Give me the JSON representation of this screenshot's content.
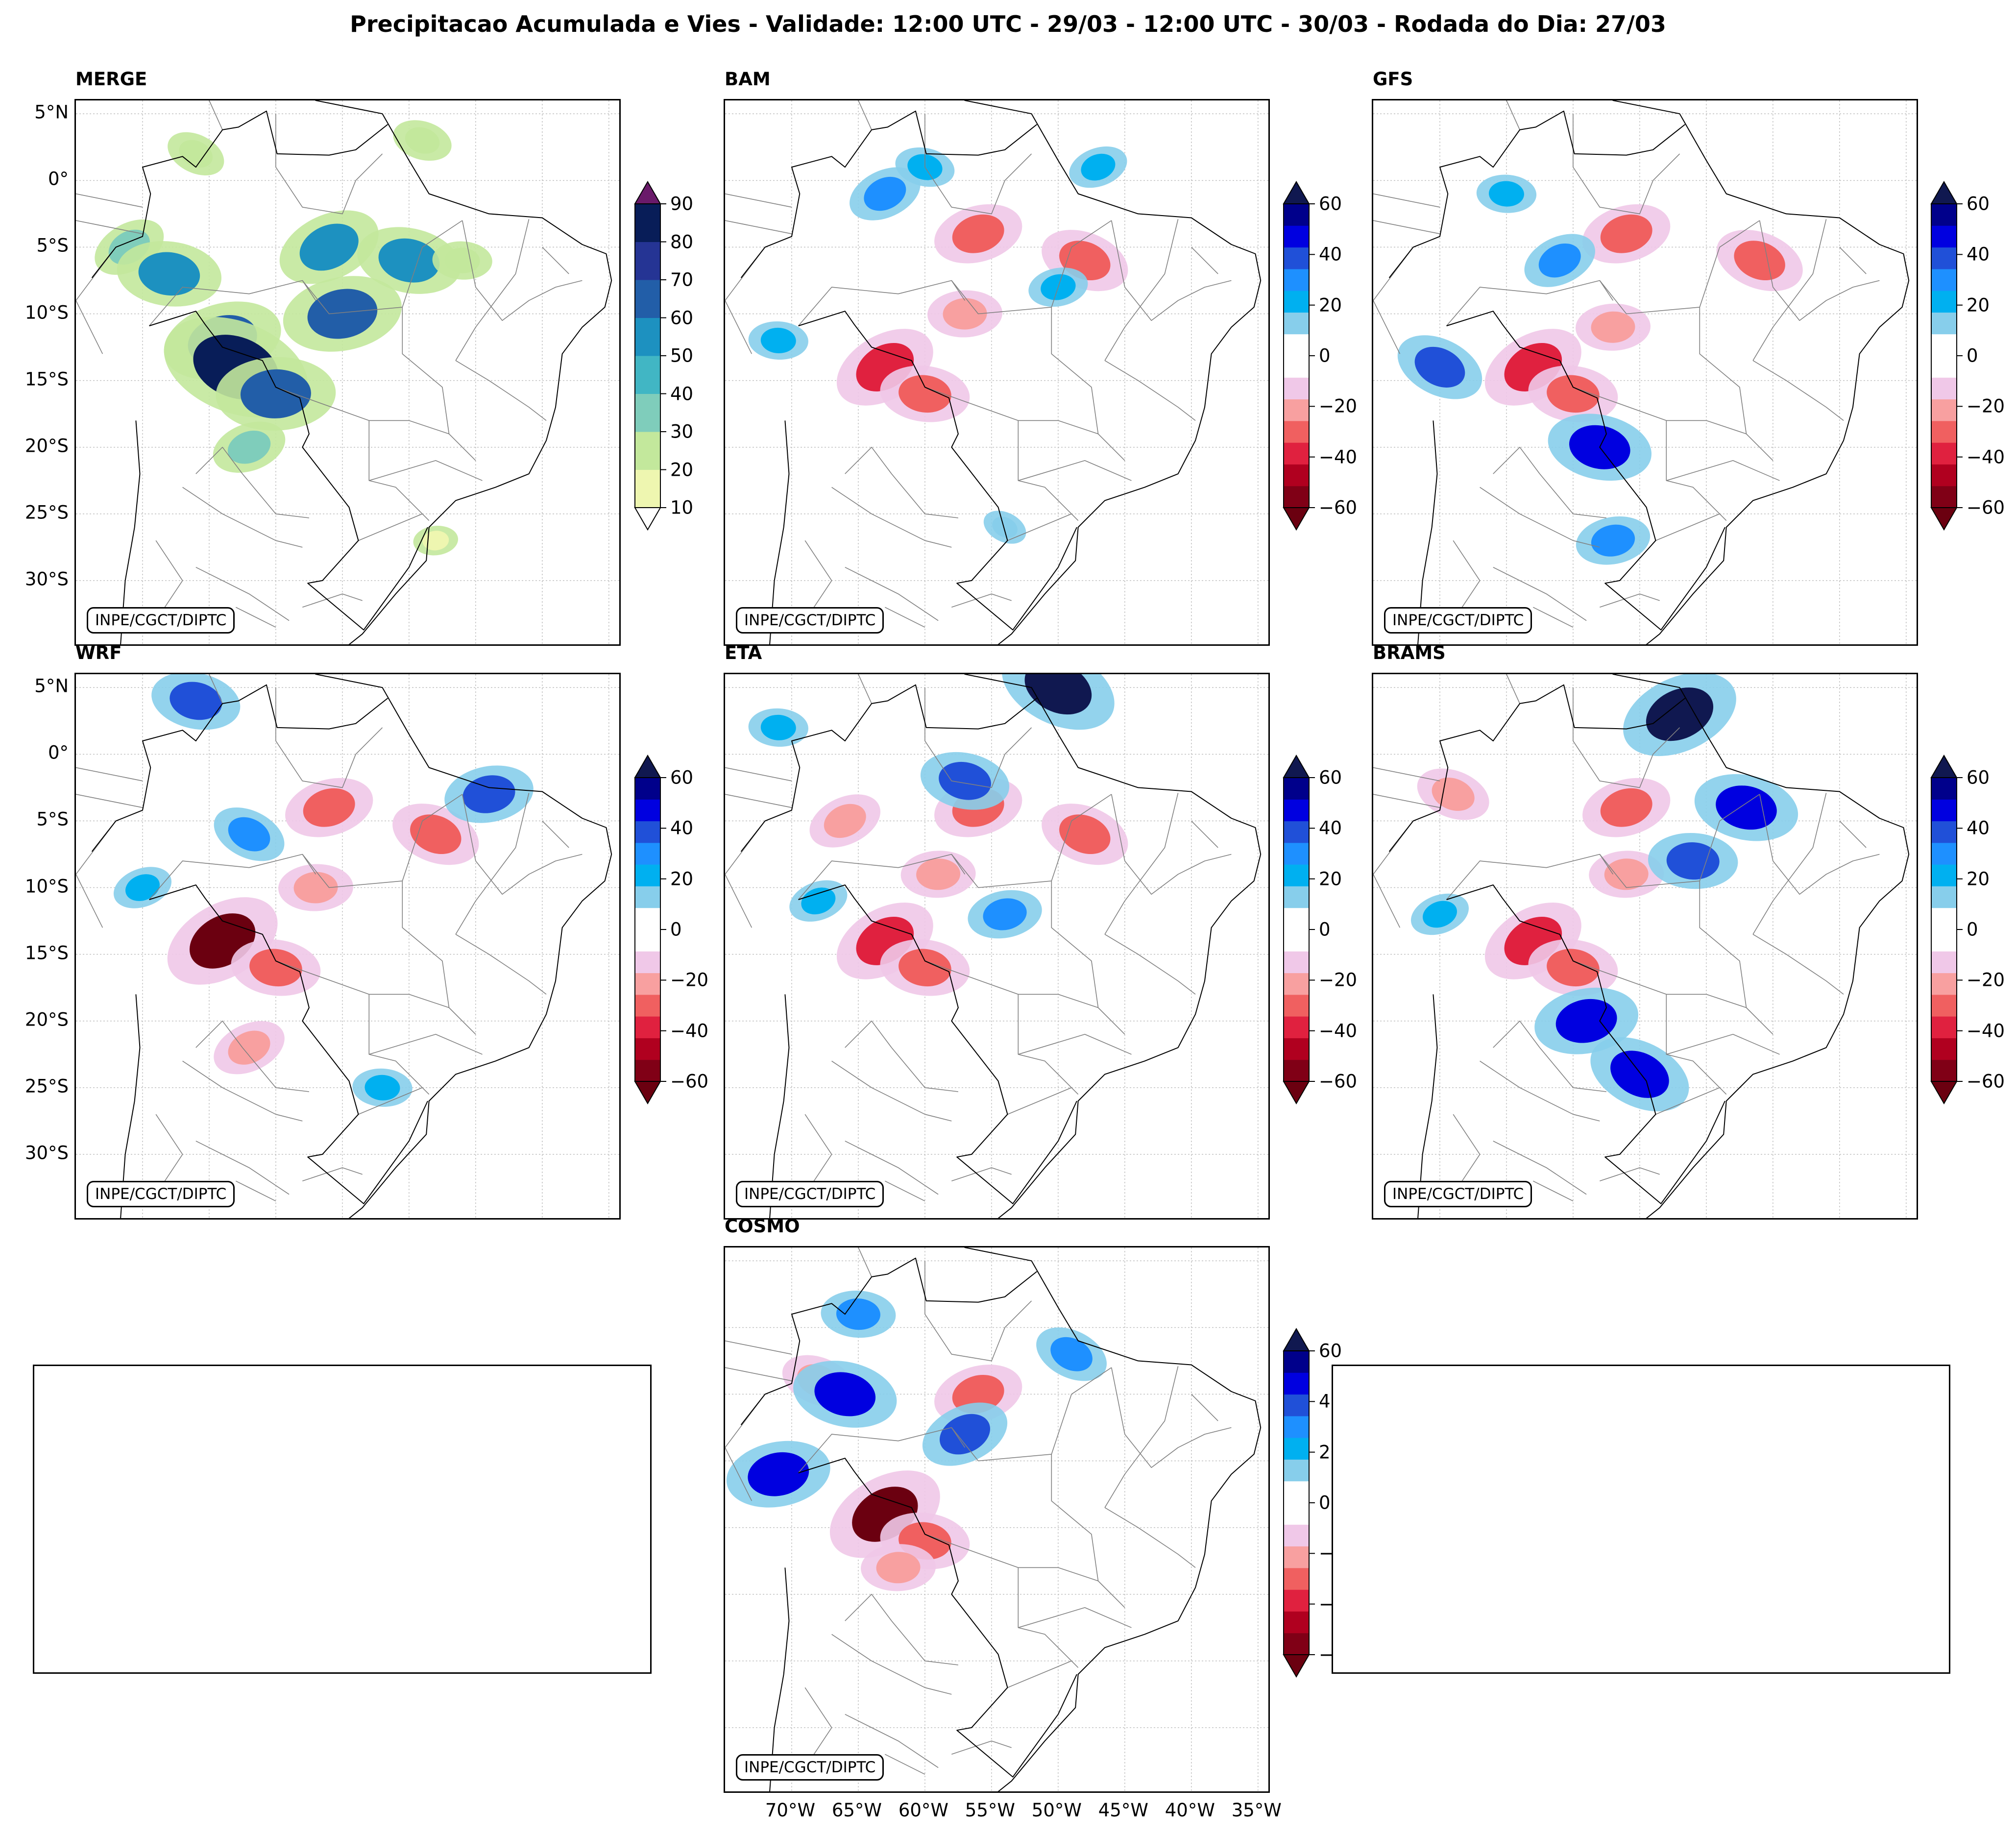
{
  "figure": {
    "title": "Precipitacao Acumulada e Vies - Validade: 12:00 UTC - 29/03 - 12:00 UTC - 30/03 - Rodada do Dia: 27/03",
    "credit": "INPE/CGCT/DIPTC",
    "lat_labels": [
      "5°N",
      "0°",
      "5°S",
      "10°S",
      "15°S",
      "20°S",
      "25°S",
      "30°S"
    ],
    "lon_labels": [
      "70°W",
      "65°W",
      "60°W",
      "55°W",
      "50°W",
      "45°W",
      "40°W",
      "35°W"
    ],
    "map_extent": {
      "lon": [
        -75,
        -34
      ],
      "lat": [
        -35,
        6
      ]
    }
  },
  "colorbars": {
    "precip": {
      "ticks": [
        "90",
        "80",
        "70",
        "60",
        "50",
        "40",
        "30",
        "20",
        "10"
      ],
      "colors": [
        "#eef6b0",
        "#c3e89c",
        "#7fcdbb",
        "#41b6c4",
        "#1d91c0",
        "#225ea8",
        "#253494",
        "#081d58"
      ],
      "over_color": "#6a1a6a",
      "under_color": "#ffffff"
    },
    "bias": {
      "ticks": [
        "60",
        "40",
        "20",
        "0",
        "−20",
        "−40",
        "−60"
      ],
      "colors": [
        "#800016",
        "#b0001f",
        "#e0213f",
        "#f06060",
        "#f8a0a0",
        "#f0c8e8",
        "#ffffff",
        "#ffffff",
        "#87ceeb",
        "#00b0f0",
        "#1e90ff",
        "#2050d8",
        "#0000e0",
        "#00008b"
      ],
      "over_color": "#101850",
      "under_color": "#6b0010"
    }
  },
  "panels": [
    {
      "id": "merge",
      "title": "MERGE",
      "kind": "precip",
      "show_lat": true,
      "show_lon": false,
      "blobs": [
        {
          "lon": -71,
          "lat": -5,
          "value": 30
        },
        {
          "lon": -68,
          "lat": -7,
          "value": 50
        },
        {
          "lon": -64,
          "lat": -12,
          "value": 60
        },
        {
          "lon": -63,
          "lat": -14,
          "value": 80
        },
        {
          "lon": -60,
          "lat": -16,
          "value": 60
        },
        {
          "lon": -56,
          "lat": -5,
          "value": 50
        },
        {
          "lon": -50,
          "lat": -6,
          "value": 50
        },
        {
          "lon": -55,
          "lat": -10,
          "value": 60
        },
        {
          "lon": -66,
          "lat": 2,
          "value": 20
        },
        {
          "lon": -46,
          "lat": -6,
          "value": 20
        },
        {
          "lon": -62,
          "lat": -20,
          "value": 30
        },
        {
          "lon": -49,
          "lat": 3,
          "value": 20
        },
        {
          "lon": -48,
          "lat": -27,
          "value": 10
        }
      ]
    },
    {
      "id": "bam",
      "title": "BAM",
      "kind": "bias",
      "show_lat": false,
      "show_lon": false,
      "blobs": [
        {
          "lon": -63,
          "lat": -14,
          "value": -50
        },
        {
          "lon": -60,
          "lat": -16,
          "value": -40
        },
        {
          "lon": -56,
          "lat": -4,
          "value": -40
        },
        {
          "lon": -48,
          "lat": -6,
          "value": -40
        },
        {
          "lon": -57,
          "lat": -10,
          "value": -30
        },
        {
          "lon": -63,
          "lat": -1,
          "value": 30
        },
        {
          "lon": -60,
          "lat": 1,
          "value": 20
        },
        {
          "lon": -50,
          "lat": -8,
          "value": 20
        },
        {
          "lon": -54,
          "lat": -26,
          "value": 10
        },
        {
          "lon": -71,
          "lat": -12,
          "value": 20
        },
        {
          "lon": -47,
          "lat": 1,
          "value": 20
        }
      ]
    },
    {
      "id": "gfs",
      "title": "GFS",
      "kind": "bias",
      "show_lat": false,
      "show_lon": false,
      "blobs": [
        {
          "lon": -63,
          "lat": -14,
          "value": -50
        },
        {
          "lon": -60,
          "lat": -16,
          "value": -40
        },
        {
          "lon": -56,
          "lat": -4,
          "value": -40
        },
        {
          "lon": -46,
          "lat": -6,
          "value": -40
        },
        {
          "lon": -57,
          "lat": -11,
          "value": -30
        },
        {
          "lon": -61,
          "lat": -6,
          "value": 30
        },
        {
          "lon": -58,
          "lat": -20,
          "value": 50
        },
        {
          "lon": -57,
          "lat": -27,
          "value": 30
        },
        {
          "lon": -70,
          "lat": -14,
          "value": 40
        },
        {
          "lon": -65,
          "lat": -1,
          "value": 20
        }
      ]
    },
    {
      "id": "wrf",
      "title": "WRF",
      "kind": "bias",
      "show_lat": true,
      "show_lon": false,
      "blobs": [
        {
          "lon": -64,
          "lat": -14,
          "value": -60
        },
        {
          "lon": -60,
          "lat": -16,
          "value": -40
        },
        {
          "lon": -56,
          "lat": -4,
          "value": -40
        },
        {
          "lon": -48,
          "lat": -6,
          "value": -40
        },
        {
          "lon": -57,
          "lat": -10,
          "value": -30
        },
        {
          "lon": -62,
          "lat": -22,
          "value": -30
        },
        {
          "lon": -66,
          "lat": 4,
          "value": 40
        },
        {
          "lon": -44,
          "lat": -3,
          "value": 40
        },
        {
          "lon": -62,
          "lat": -6,
          "value": 30
        },
        {
          "lon": -52,
          "lat": -25,
          "value": 20
        },
        {
          "lon": -70,
          "lat": -10,
          "value": 20
        }
      ]
    },
    {
      "id": "eta",
      "title": "ETA",
      "kind": "bias",
      "show_lat": false,
      "show_lon": false,
      "blobs": [
        {
          "lon": -63,
          "lat": -14,
          "value": -50
        },
        {
          "lon": -60,
          "lat": -16,
          "value": -40
        },
        {
          "lon": -56,
          "lat": -4,
          "value": -40
        },
        {
          "lon": -48,
          "lat": -6,
          "value": -40
        },
        {
          "lon": -59,
          "lat": -9,
          "value": -30
        },
        {
          "lon": -66,
          "lat": -5,
          "value": -30
        },
        {
          "lon": -57,
          "lat": -2,
          "value": 40
        },
        {
          "lon": -54,
          "lat": -12,
          "value": 30
        },
        {
          "lon": -50,
          "lat": 5,
          "value": 60
        },
        {
          "lon": -71,
          "lat": 2,
          "value": 20
        },
        {
          "lon": -68,
          "lat": -11,
          "value": 20
        }
      ]
    },
    {
      "id": "brams",
      "title": "BRAMS",
      "kind": "bias",
      "show_lat": false,
      "show_lon": false,
      "blobs": [
        {
          "lon": -63,
          "lat": -14,
          "value": -50
        },
        {
          "lon": -60,
          "lat": -16,
          "value": -40
        },
        {
          "lon": -56,
          "lat": -4,
          "value": -40
        },
        {
          "lon": -69,
          "lat": -3,
          "value": -30
        },
        {
          "lon": -56,
          "lat": -9,
          "value": -30
        },
        {
          "lon": -52,
          "lat": 3,
          "value": 60
        },
        {
          "lon": -47,
          "lat": -4,
          "value": 50
        },
        {
          "lon": -59,
          "lat": -20,
          "value": 50
        },
        {
          "lon": -55,
          "lat": -24,
          "value": 50
        },
        {
          "lon": -51,
          "lat": -8,
          "value": 40
        },
        {
          "lon": -70,
          "lat": -12,
          "value": 20
        }
      ]
    },
    {
      "id": "cosmo",
      "title": "COSMO",
      "kind": "bias",
      "show_lat": false,
      "show_lon": true,
      "blobs": [
        {
          "lon": -63,
          "lat": -14,
          "value": -60
        },
        {
          "lon": -60,
          "lat": -16,
          "value": -40
        },
        {
          "lon": -56,
          "lat": -5,
          "value": -40
        },
        {
          "lon": -68,
          "lat": -4,
          "value": -30
        },
        {
          "lon": -62,
          "lat": -18,
          "value": -30
        },
        {
          "lon": -57,
          "lat": -8,
          "value": 40
        },
        {
          "lon": -66,
          "lat": -5,
          "value": 50
        },
        {
          "lon": -71,
          "lat": -11,
          "value": 50
        },
        {
          "lon": -49,
          "lat": -2,
          "value": 30
        },
        {
          "lon": -65,
          "lat": 1,
          "value": 30
        }
      ]
    }
  ]
}
